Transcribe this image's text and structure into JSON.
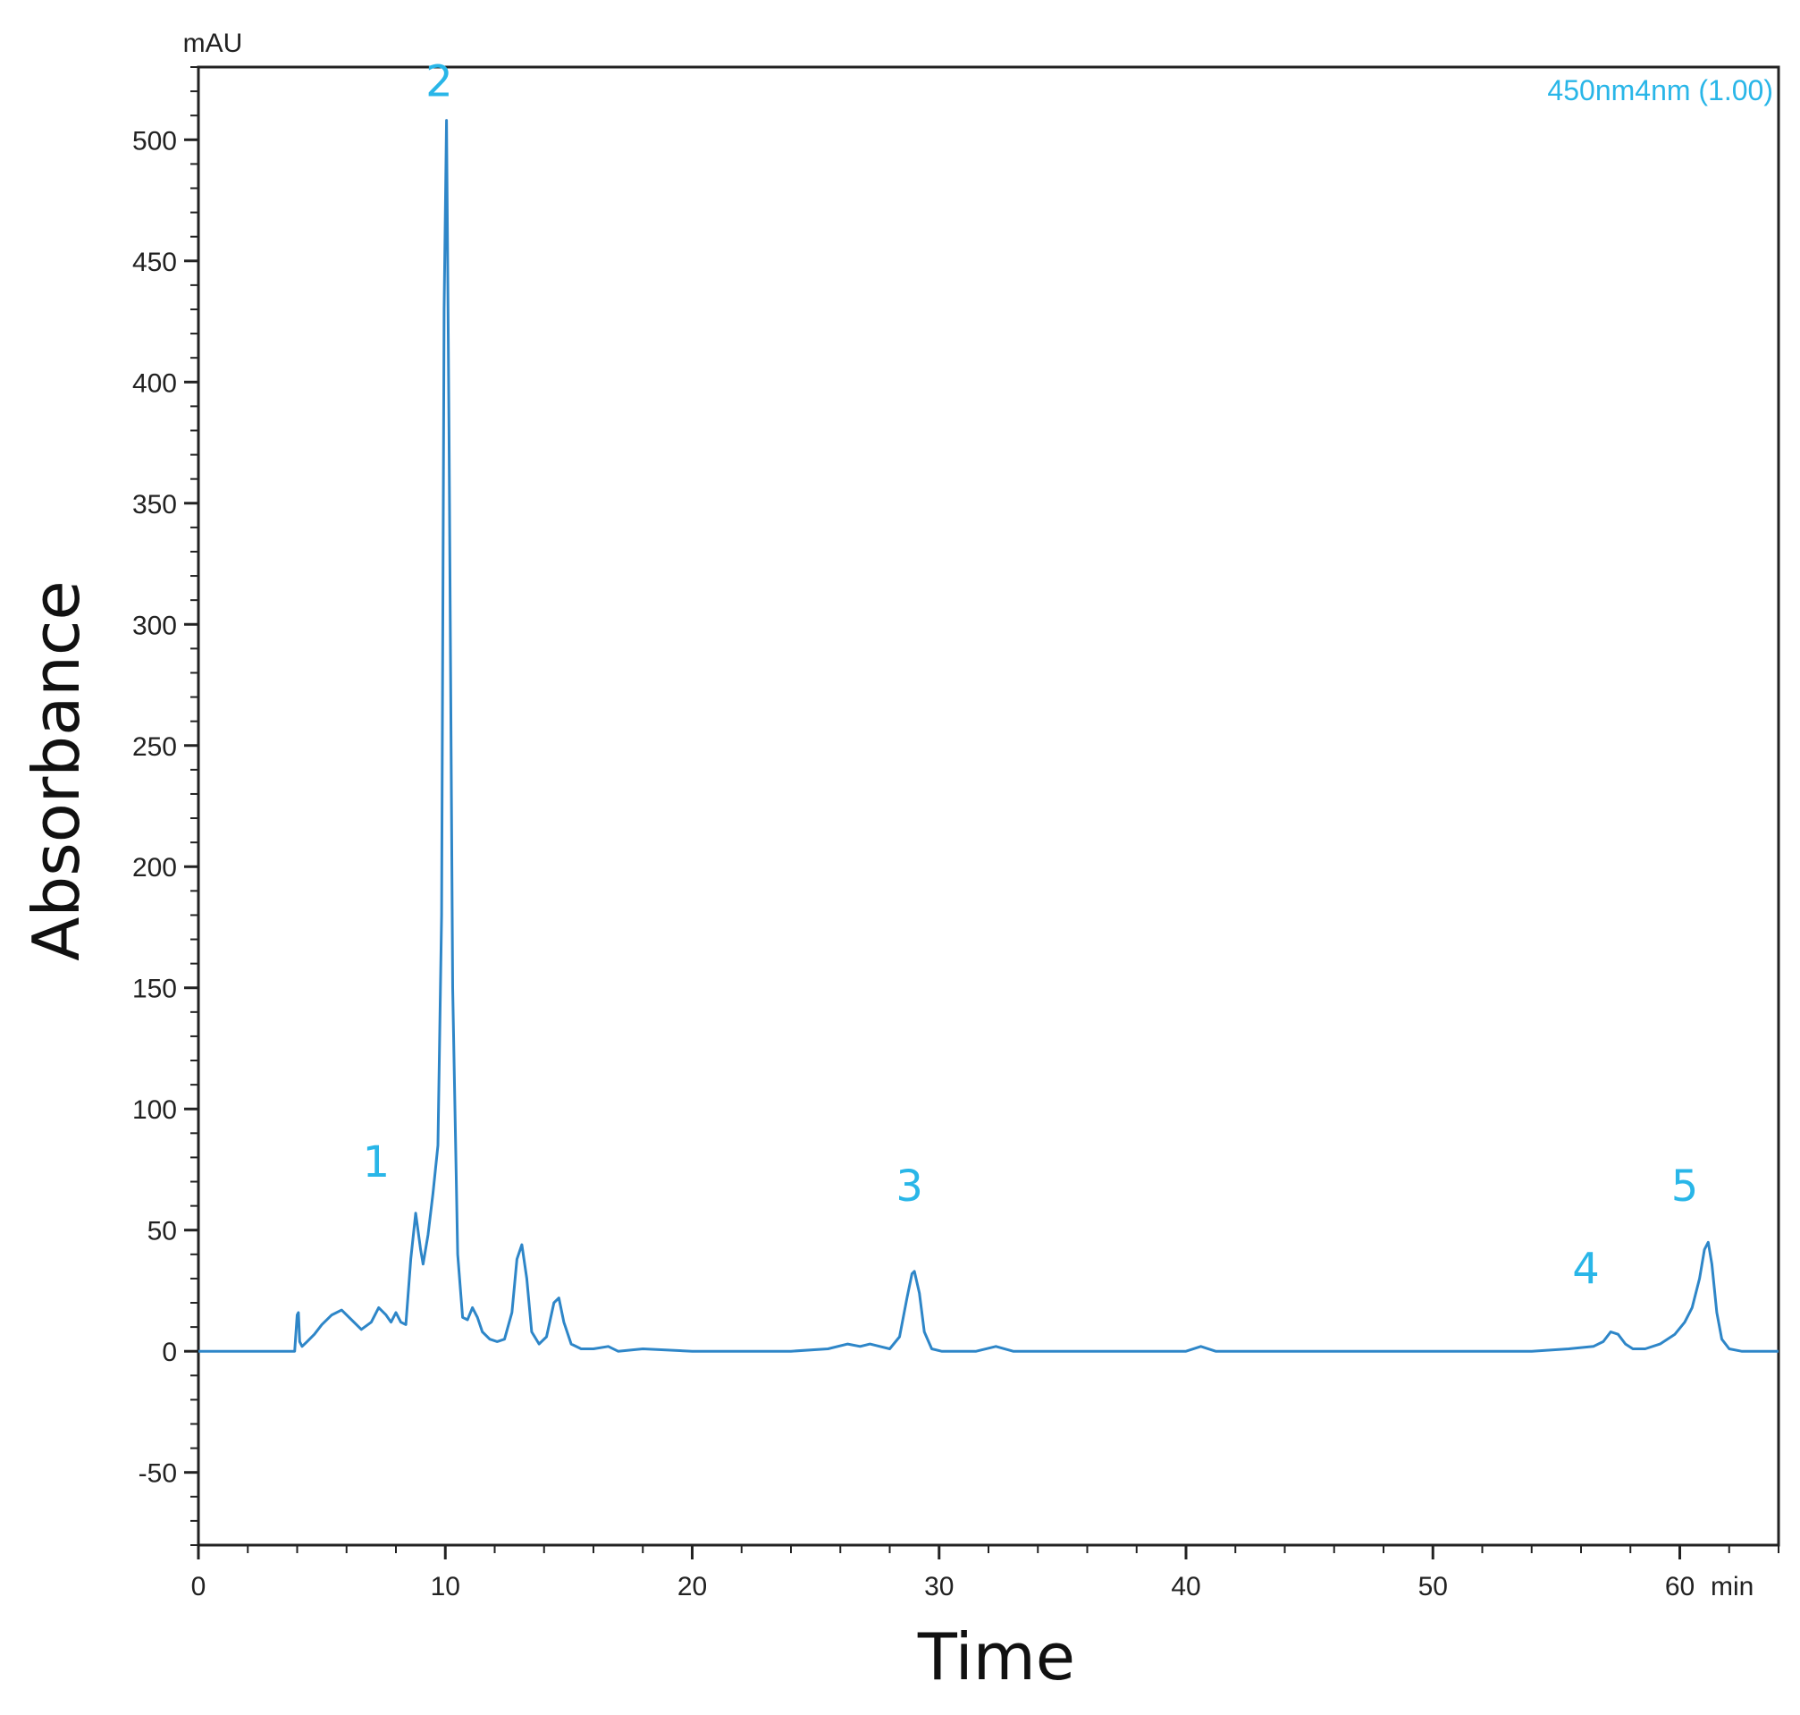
{
  "chart_data": {
    "type": "line",
    "y_unit": "mAU",
    "x_unit": "min",
    "xlabel": "Time",
    "ylabel": "Absorbance",
    "channel": "450nm4nm (1.00)",
    "xlim": [
      0,
      64
    ],
    "ylim": [
      -80,
      530
    ],
    "x_ticks": [
      0,
      10,
      20,
      30,
      40,
      50,
      60
    ],
    "y_ticks": [
      -50,
      0,
      50,
      100,
      150,
      200,
      250,
      300,
      350,
      400,
      450,
      500
    ],
    "grid": false,
    "colors": {
      "trace": "#2e86c8",
      "annotation": "#29b6e8",
      "axis": "#222222"
    },
    "series": [
      {
        "x": [
          0,
          3.9,
          4.0,
          4.05,
          4.1,
          4.2,
          4.4,
          4.7,
          5.0,
          5.4,
          5.8,
          6.2,
          6.6,
          7.0,
          7.3,
          7.6,
          7.8,
          8.0,
          8.2,
          8.4,
          8.6,
          8.8,
          9.0,
          9.1,
          9.3,
          9.5,
          9.7,
          9.85,
          9.95,
          10.05,
          10.15,
          10.3,
          10.5,
          10.7,
          10.9,
          11.1,
          11.3,
          11.5,
          11.8,
          12.1,
          12.4,
          12.7,
          12.9,
          13.1,
          13.3,
          13.5,
          13.8,
          14.1,
          14.4,
          14.6,
          14.8,
          15.1,
          15.5,
          16.0,
          16.6,
          17.0,
          18.0,
          20.0,
          22.0,
          24.0,
          25.5,
          26.3,
          26.8,
          27.2,
          27.6,
          28.0,
          28.4,
          28.7,
          28.9,
          29.0,
          29.2,
          29.4,
          29.7,
          30.1,
          30.6,
          31.5,
          32.3,
          33.0,
          36.0,
          40.0,
          40.6,
          41.2,
          45.0,
          50.0,
          54.0,
          55.5,
          56.5,
          56.9,
          57.2,
          57.5,
          57.8,
          58.1,
          58.6,
          59.2,
          59.8,
          60.2,
          60.5,
          60.8,
          61.0,
          61.15,
          61.3,
          61.5,
          61.7,
          62.0,
          62.5,
          63.0,
          64.0
        ],
        "y": [
          0,
          0,
          15,
          16,
          4,
          2,
          4,
          7,
          11,
          15,
          17,
          13,
          9,
          12,
          18,
          15,
          12,
          16,
          12,
          11,
          38,
          57,
          42,
          36,
          48,
          65,
          85,
          180,
          430,
          508,
          380,
          150,
          40,
          14,
          13,
          18,
          14,
          8,
          5,
          4,
          5,
          16,
          38,
          44,
          30,
          8,
          3,
          6,
          20,
          22,
          12,
          3,
          1,
          1,
          2,
          0,
          1,
          0,
          0,
          0,
          1,
          3,
          2,
          3,
          2,
          1,
          6,
          22,
          32,
          33,
          24,
          8,
          1,
          0,
          0,
          0,
          2,
          0,
          0,
          0,
          2,
          0,
          0,
          0,
          0,
          1,
          2,
          4,
          8,
          7,
          3,
          1,
          1,
          3,
          7,
          12,
          18,
          30,
          42,
          45,
          36,
          16,
          5,
          1,
          0,
          0,
          0
        ]
      }
    ],
    "peak_labels": [
      {
        "label": "1",
        "x": 7.2,
        "y": 72
      },
      {
        "label": "2",
        "x": 9.75,
        "y": 518
      },
      {
        "label": "3",
        "x": 28.8,
        "y": 62
      },
      {
        "label": "4",
        "x": 56.2,
        "y": 28
      },
      {
        "label": "5",
        "x": 60.2,
        "y": 62
      }
    ]
  }
}
